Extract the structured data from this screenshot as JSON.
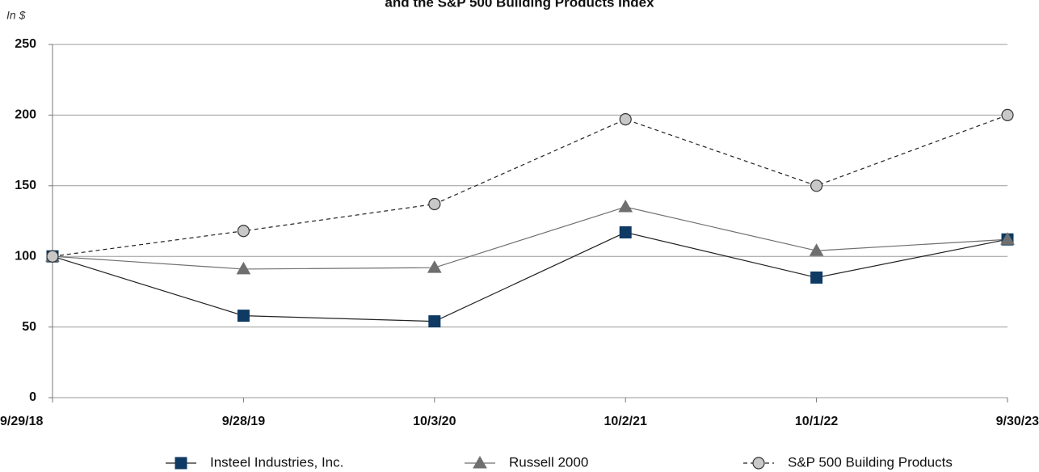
{
  "chart_data": {
    "type": "line",
    "title": "and the S&P 500 Building Products Index",
    "y_axis_unit": "In $",
    "categories": [
      "9/29/18",
      "9/28/19",
      "10/3/20",
      "10/2/21",
      "10/1/22",
      "9/30/23"
    ],
    "series": [
      {
        "name": "Insteel Industries, Inc.",
        "color": "#0e3a63",
        "line_color": "#222222",
        "marker": "square",
        "dashed": false,
        "values": [
          100,
          58,
          54,
          117,
          85,
          112
        ]
      },
      {
        "name": "Russell 2000",
        "color": "#6f6f6f",
        "line_color": "#6f6f6f",
        "marker": "triangle",
        "dashed": false,
        "values": [
          100,
          91,
          92,
          135,
          104,
          112
        ]
      },
      {
        "name": "S&P 500 Building Products",
        "color": "#c8c8c8",
        "line_color": "#222222",
        "marker": "circle",
        "dashed": true,
        "values": [
          100,
          118,
          137,
          197,
          150,
          200
        ]
      }
    ],
    "ylim": [
      0,
      250
    ],
    "yticks": [
      0,
      50,
      100,
      150,
      200,
      250
    ],
    "grid": true
  }
}
